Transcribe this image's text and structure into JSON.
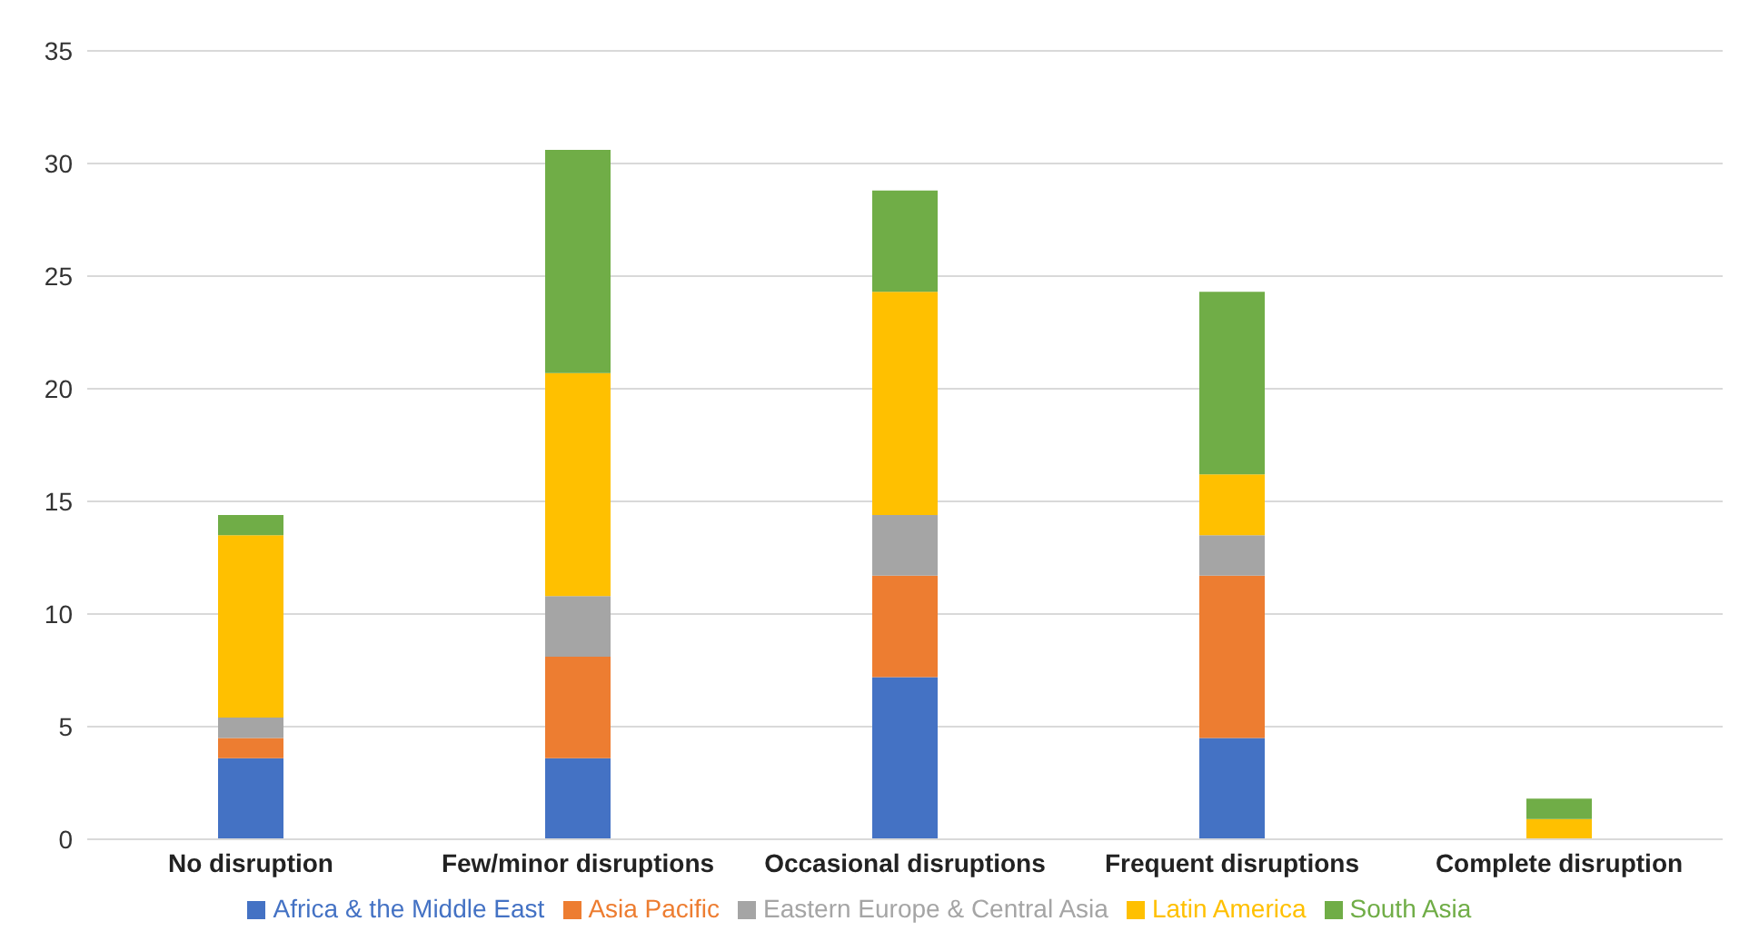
{
  "chart_data": {
    "type": "bar",
    "stacked": true,
    "categories": [
      "No disruption",
      "Few/minor disruptions",
      "Occasional disruptions",
      "Frequent disruptions",
      "Complete disruption"
    ],
    "series": [
      {
        "name": "Africa & the Middle East",
        "color": "#4472c4",
        "values": [
          3.6,
          3.6,
          7.2,
          4.5,
          0
        ]
      },
      {
        "name": "Asia Pacific",
        "color": "#ed7d31",
        "values": [
          0.9,
          4.5,
          4.5,
          7.2,
          0
        ]
      },
      {
        "name": "Eastern Europe & Central Asia",
        "color": "#a5a5a5",
        "values": [
          0.9,
          2.7,
          2.7,
          1.8,
          0
        ]
      },
      {
        "name": "Latin America",
        "color": "#ffc000",
        "values": [
          8.1,
          9.9,
          9.9,
          2.7,
          0.9
        ]
      },
      {
        "name": "South Asia",
        "color": "#70ad47",
        "values": [
          0.9,
          9.9,
          4.5,
          8.1,
          0.9
        ]
      }
    ],
    "ylim": [
      0,
      35
    ],
    "yticks": [
      0,
      5,
      10,
      15,
      20,
      25,
      30,
      35
    ],
    "grid": "y",
    "legend": "bottom"
  }
}
